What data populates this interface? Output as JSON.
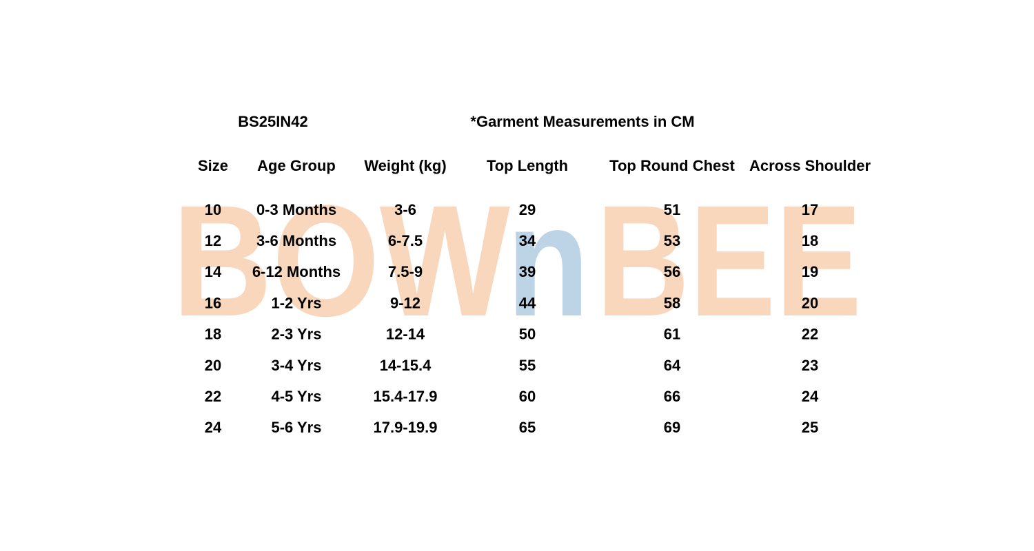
{
  "header": {
    "code": "BS25IN42",
    "note": "*Garment Measurements in CM"
  },
  "watermark": {
    "parts": [
      "BOW",
      "n",
      "BEE"
    ]
  },
  "table": {
    "columns": [
      "Size",
      "Age Group",
      "Weight (kg)",
      "Top Length",
      "Top Round Chest",
      "Across Shoulder"
    ],
    "rows": [
      [
        "10",
        "0-3 Months",
        "3-6",
        "29",
        "51",
        "17"
      ],
      [
        "12",
        "3-6 Months",
        "6-7.5",
        "34",
        "53",
        "18"
      ],
      [
        "14",
        "6-12 Months",
        "7.5-9",
        "39",
        "56",
        "19"
      ],
      [
        "16",
        "1-2 Yrs",
        "9-12",
        "44",
        "58",
        "20"
      ],
      [
        "18",
        "2-3 Yrs",
        "12-14",
        "50",
        "61",
        "22"
      ],
      [
        "20",
        "3-4 Yrs",
        "14-15.4",
        "55",
        "64",
        "23"
      ],
      [
        "22",
        "4-5 Yrs",
        "15.4-17.9",
        "60",
        "66",
        "24"
      ],
      [
        "24",
        "5-6 Yrs",
        "17.9-19.9",
        "65",
        "69",
        "25"
      ]
    ]
  }
}
